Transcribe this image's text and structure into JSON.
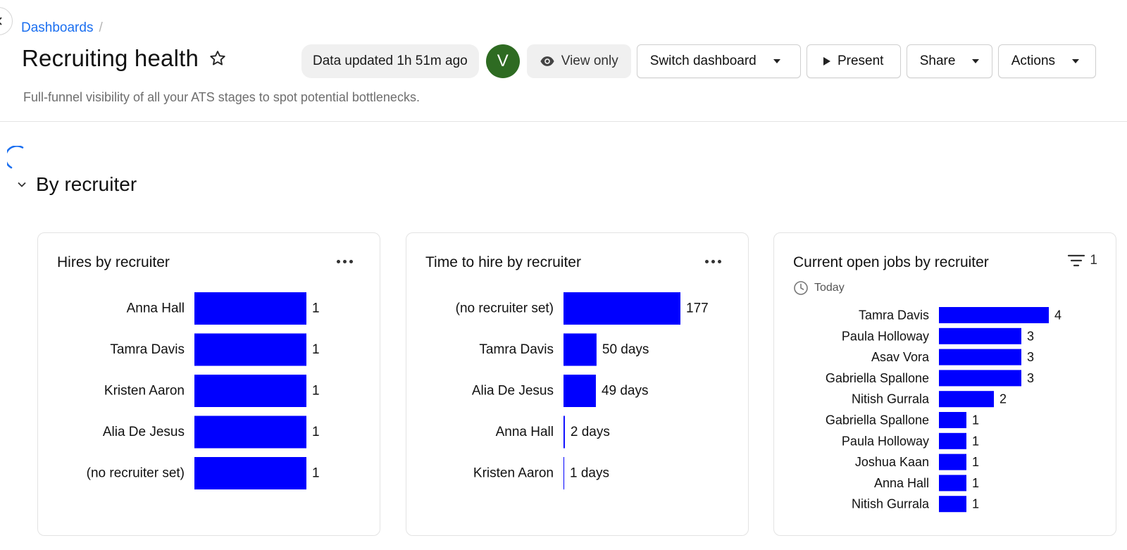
{
  "breadcrumb": {
    "root": "Dashboards",
    "separator": "/"
  },
  "header": {
    "title": "Recruiting health",
    "subtitle": "Full-funnel visibility of all your ATS stages to spot potential bottlenecks.",
    "data_updated": "Data updated 1h 51m ago",
    "avatar_initial": "V",
    "avatar_color": "#2e6b22",
    "view_only": "View only",
    "switch_dashboard": "Switch dashboard",
    "present": "Present",
    "share": "Share",
    "actions": "Actions"
  },
  "section": {
    "title": "By recruiter",
    "expanded": true
  },
  "colors": {
    "bar": "#0000ff",
    "link": "#1b6ff0",
    "spinner": "#1b6ff0"
  },
  "cards": [
    {
      "title": "Hires by recruiter",
      "menu_icon": "more-icon",
      "chart_data": {
        "type": "bar",
        "orientation": "horizontal",
        "categories": [
          "Anna Hall",
          "Tamra Davis",
          "Kristen Aaron",
          "Alia De Jesus",
          "(no recruiter set)"
        ],
        "values": [
          1,
          1,
          1,
          1,
          1
        ],
        "value_labels": [
          "1",
          "1",
          "1",
          "1",
          "1"
        ],
        "xlim": [
          0,
          1
        ]
      }
    },
    {
      "title": "Time to hire by recruiter",
      "menu_icon": "more-icon",
      "chart_data": {
        "type": "bar",
        "orientation": "horizontal",
        "categories": [
          "(no recruiter set)",
          "Tamra Davis",
          "Alia De Jesus",
          "Anna Hall",
          "Kristen Aaron"
        ],
        "values": [
          177,
          50,
          49,
          2,
          1
        ],
        "value_labels": [
          "177",
          "50 days",
          "49 days",
          "2 days",
          "1 days"
        ],
        "xlim": [
          0,
          177
        ]
      }
    },
    {
      "title": "Current open jobs by recruiter",
      "filter_count": "1",
      "date_range": "Today",
      "chart_data": {
        "type": "bar",
        "orientation": "horizontal",
        "categories": [
          "Tamra Davis",
          "Paula Holloway",
          "Asav Vora",
          "Gabriella Spallone",
          "Nitish Gurrala",
          "Gabriella Spallone",
          "Paula Holloway",
          "Joshua Kaan",
          "Anna Hall",
          "Nitish Gurrala"
        ],
        "values": [
          4,
          3,
          3,
          3,
          2,
          1,
          1,
          1,
          1,
          1
        ],
        "value_labels": [
          "4",
          "3",
          "3",
          "3",
          "2",
          "1",
          "1",
          "1",
          "1",
          "1"
        ],
        "xlim": [
          0,
          4
        ]
      }
    }
  ]
}
